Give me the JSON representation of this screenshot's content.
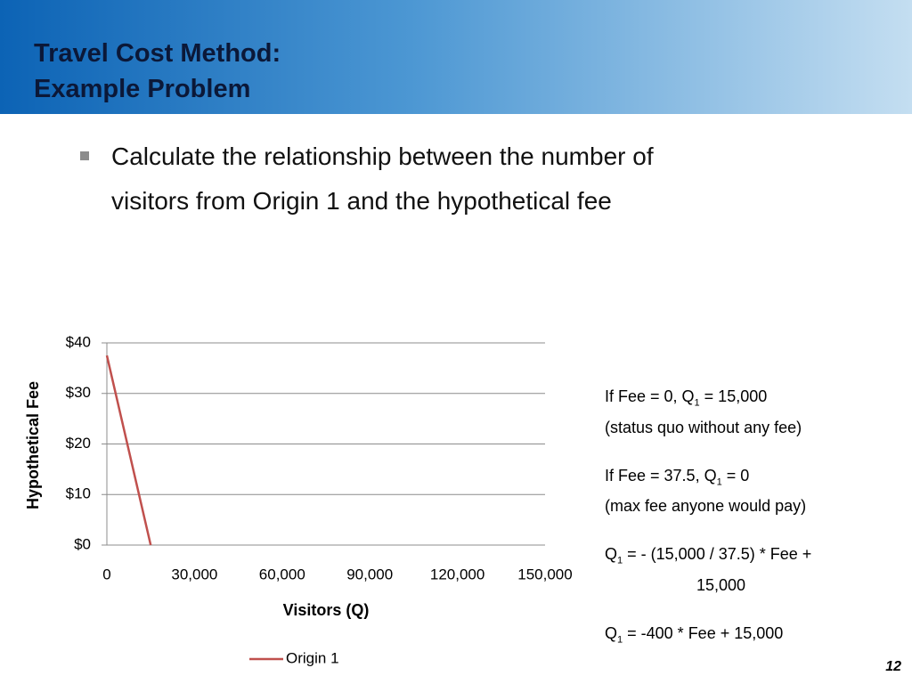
{
  "header": {
    "title_lines": [
      "Travel Cost Method:",
      "Example Problem"
    ]
  },
  "bullet": {
    "lines": [
      "Calculate the relationship between the number of",
      "visitors from Origin 1 and the hypothetical fee"
    ]
  },
  "chart_data": {
    "type": "line",
    "xlabel": "Visitors (Q)",
    "ylabel": "Hypothetical Fee",
    "x": [
      0,
      15000
    ],
    "series": [
      {
        "name": "Origin 1",
        "color": "#c0504d",
        "values": [
          37.5,
          0
        ]
      }
    ],
    "xlim": [
      0,
      150000
    ],
    "xticks": [
      0,
      {
        "value": 30000,
        "label": "30,000"
      },
      {
        "value": 60000,
        "label": "60,000"
      },
      {
        "value": 90000,
        "label": "90,000"
      },
      {
        "value": 120000,
        "label": "120,000"
      },
      {
        "value": 150000,
        "label": "150,000"
      }
    ],
    "ylim": [
      0,
      40
    ],
    "yticks": [
      {
        "value": 0,
        "label": "$0"
      },
      {
        "value": 10,
        "label": "$10"
      },
      {
        "value": 20,
        "label": "$20"
      },
      {
        "value": 30,
        "label": "$30"
      },
      {
        "value": 40,
        "label": "$40"
      }
    ],
    "grid": true,
    "legend": "bottom"
  },
  "notes": [
    [
      [
        "If Fee = 0, Q",
        "1",
        " = 15,000"
      ],
      [
        "(status quo without any fee)"
      ]
    ],
    [
      [
        "If Fee = 37.5, Q",
        "1",
        " = 0"
      ],
      [
        "(max fee anyone would pay)"
      ]
    ],
    [
      [
        "Q",
        "1",
        " = - (15,000 / 37.5) * Fee +"
      ],
      [
        "15,000"
      ]
    ],
    [
      [
        "Q",
        "1",
        " = -400 * Fee + 15,000"
      ]
    ]
  ],
  "page_number": "12"
}
